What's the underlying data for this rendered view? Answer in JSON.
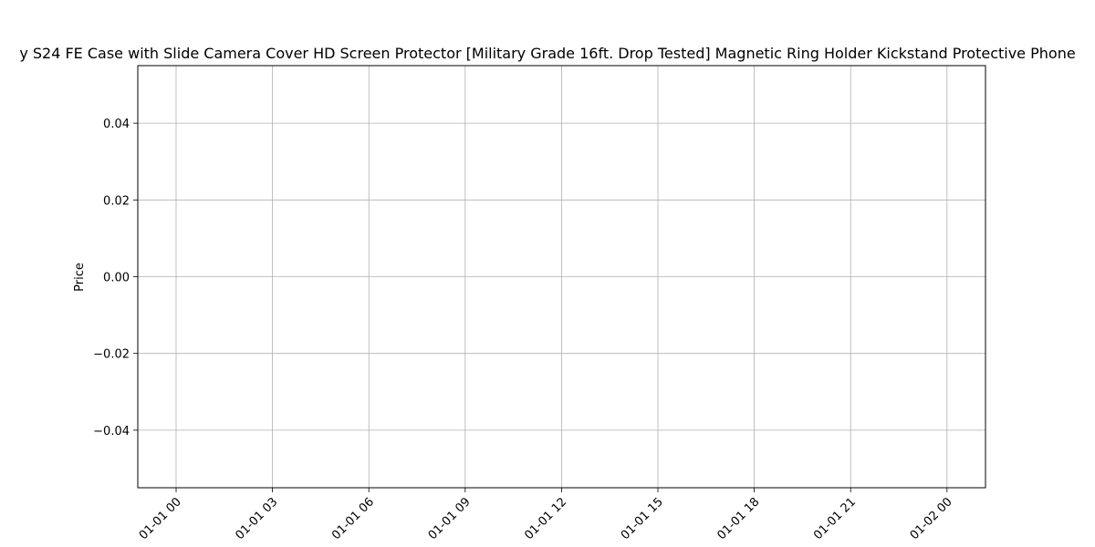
{
  "chart_data": {
    "type": "line",
    "title": "...y S24 FE Case with Slide Camera Cover HD Screen Protector [Military Grade 16ft. Drop Tested] Magnetic Ring Holder Kickstand Protective Phone...",
    "title_visible": "y S24 FE Case with Slide Camera Cover HD Screen Protector [Military Grade 16ft. Drop Tested] Magnetic Ring Holder Kickstand Protective Phone",
    "xlabel": "",
    "ylabel": "Price",
    "x_ticks": [
      "01-01 00",
      "01-01 03",
      "01-01 06",
      "01-01 09",
      "01-01 12",
      "01-01 15",
      "01-01 18",
      "01-01 21",
      "01-02 00"
    ],
    "y_ticks": [
      "0.04",
      "0.02",
      "0.00",
      "−0.02",
      "−0.04"
    ],
    "y_tick_values": [
      0.04,
      0.02,
      0.0,
      -0.02,
      -0.04
    ],
    "ylim": [
      -0.055,
      0.055
    ],
    "grid": true,
    "x": [],
    "y": []
  }
}
